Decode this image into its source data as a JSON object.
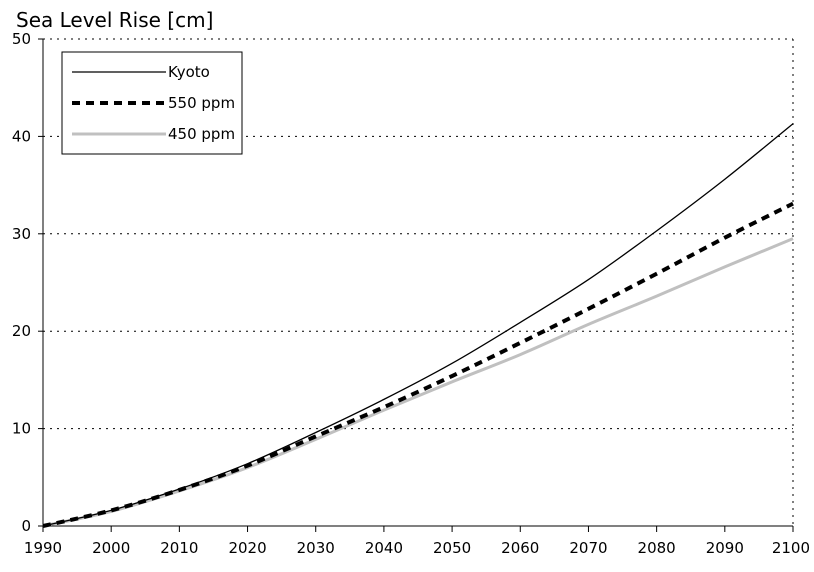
{
  "chart_data": {
    "type": "line",
    "title": "Sea Level Rise [cm]",
    "xlabel": "",
    "ylabel": "",
    "xlim": [
      1990,
      2100
    ],
    "ylim": [
      0,
      50
    ],
    "x_ticks": [
      1990,
      2000,
      2010,
      2020,
      2030,
      2040,
      2050,
      2060,
      2070,
      2080,
      2090,
      2100
    ],
    "y_ticks": [
      0,
      10,
      20,
      30,
      40,
      50
    ],
    "grid": "horizontal-dotted",
    "legend_position": "top-left",
    "x": [
      1990,
      2000,
      2010,
      2020,
      2030,
      2040,
      2050,
      2060,
      2070,
      2080,
      2090,
      2100
    ],
    "series": [
      {
        "name": "Kyoto",
        "style": "solid-thin",
        "color": "#000000",
        "values": [
          0,
          1.6,
          3.8,
          6.4,
          9.6,
          13,
          16.7,
          20.9,
          25.3,
          30.3,
          35.6,
          41.3
        ]
      },
      {
        "name": "550 ppm",
        "style": "dashed-thick",
        "color": "#000000",
        "values": [
          0,
          1.6,
          3.7,
          6.2,
          9.2,
          12.2,
          15.4,
          18.8,
          22.3,
          25.9,
          29.6,
          33.1
        ]
      },
      {
        "name": "450 ppm",
        "style": "solid-thick",
        "color": "#c0c0c0",
        "values": [
          0,
          1.5,
          3.6,
          6.0,
          8.9,
          11.9,
          14.8,
          17.6,
          20.7,
          23.6,
          26.6,
          29.5
        ]
      }
    ]
  }
}
